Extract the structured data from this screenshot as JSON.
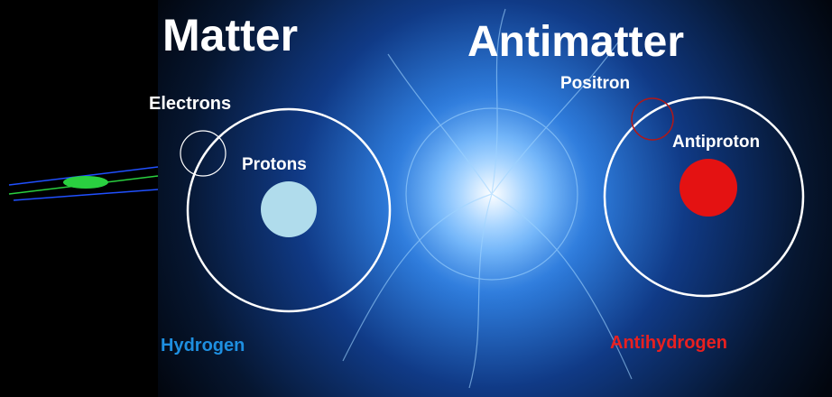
{
  "titles": {
    "matter": "Matter",
    "antimatter": "Antimatter"
  },
  "matter": {
    "electron_label": "Electrons",
    "proton_label": "Protons",
    "atom_label": "Hydrogen"
  },
  "antimatter": {
    "positron_label": "Positron",
    "antiproton_label": "Antiproton",
    "atom_label": "Antihydrogen"
  }
}
